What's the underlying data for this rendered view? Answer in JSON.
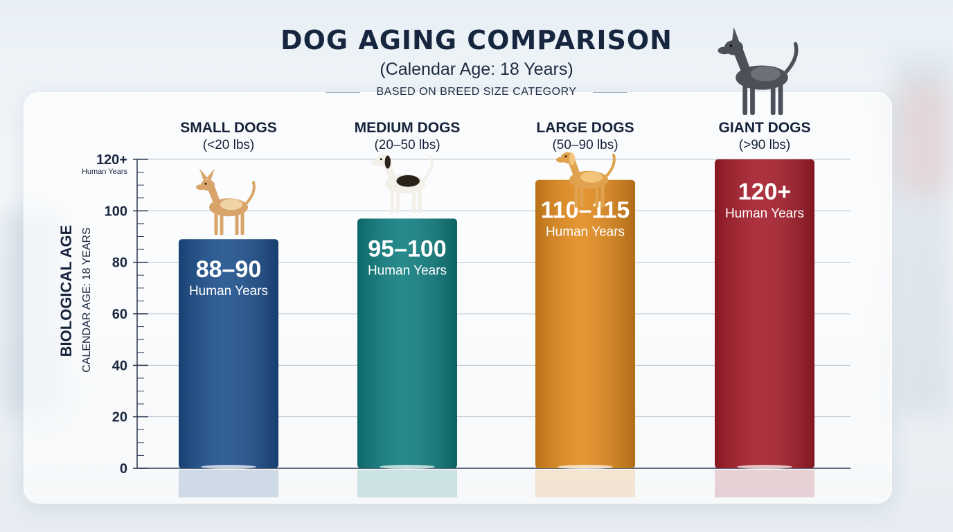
{
  "chart_data": {
    "type": "bar",
    "title": "DOG AGING COMPARISON",
    "subtitle": "(Calendar Age: 18 Years)",
    "note": "BASED ON BREED SIZE CATEGORY",
    "ylabel": "BIOLOGICAL AGE",
    "ylabel_secondary": "CALENDAR AGE: 18 YEARS",
    "ylim": [
      0,
      120
    ],
    "y_ticks": [
      "0",
      "20",
      "40",
      "60",
      "80",
      "100",
      "120+"
    ],
    "y_top_tick_sublabel": "Human Years",
    "grid": true,
    "categories": [
      {
        "name": "SMALL DOGS",
        "weight": "(<20 lbs)",
        "value": 89,
        "value_label": "88–90",
        "unit": "Human Years",
        "color": "#1c4f8c",
        "icon": "chihuahua-icon"
      },
      {
        "name": "MEDIUM DOGS",
        "weight": "(20–50 lbs)",
        "value": 97,
        "value_label": "95–100",
        "unit": "Human Years",
        "color": "#0f7d7f",
        "icon": "beagle-icon"
      },
      {
        "name": "LARGE DOGS",
        "weight": "(50–90 lbs)",
        "value": 112,
        "value_label": "110–115",
        "unit": "Human Years",
        "color": "#e28a1c",
        "icon": "golden-retriever-icon"
      },
      {
        "name": "GIANT DOGS",
        "weight": "(>90 lbs)",
        "value": 120,
        "value_label": "120+",
        "unit": "Human Years",
        "color": "#a51c2a",
        "icon": "great-dane-icon"
      }
    ]
  }
}
